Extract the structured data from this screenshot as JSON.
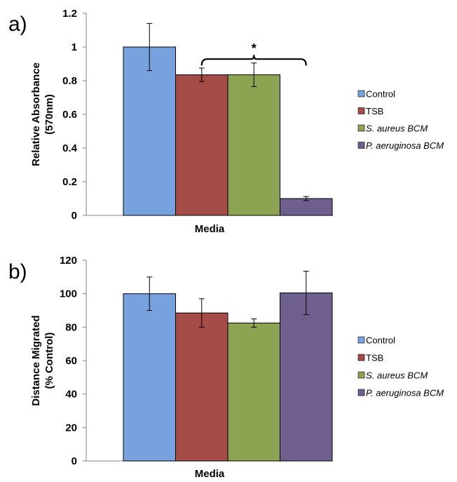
{
  "chart_data": [
    {
      "panel_label": "a)",
      "type": "bar",
      "categories": [
        "Control",
        "TSB",
        "S. aureus BCM",
        "P. aeruginosa BCM"
      ],
      "values": [
        1.0,
        0.835,
        0.835,
        0.1
      ],
      "errors": [
        0.14,
        0.04,
        0.07,
        0.012
      ],
      "colors": [
        "#77A2DD",
        "#A54B48",
        "#8CA452",
        "#6E5F8F"
      ],
      "italic": [
        false,
        false,
        true,
        true
      ],
      "xlabel": "Media",
      "ylabel_lines": [
        "Relative Absorbance",
        "(570nm)"
      ],
      "ylim": [
        0,
        1.2
      ],
      "yticks": [
        0,
        0.2,
        0.4,
        0.6,
        0.8,
        1,
        1.2
      ],
      "ytick_labels": [
        "0",
        "0.2",
        "0.4",
        "0.6",
        "0.8",
        "1",
        "1.2"
      ],
      "significance": {
        "label": "*",
        "from_category": 1,
        "to_category": 3,
        "y": 0.97
      },
      "legend_position": "right",
      "grid": false
    },
    {
      "panel_label": "b)",
      "type": "bar",
      "categories": [
        "Control",
        "TSB",
        "S. aureus BCM",
        "P. aeruginosa BCM"
      ],
      "values": [
        100,
        88.5,
        82.5,
        100.5
      ],
      "errors": [
        10,
        8.5,
        2.5,
        13
      ],
      "colors": [
        "#77A2DD",
        "#A54B48",
        "#8CA452",
        "#6E5F8F"
      ],
      "italic": [
        false,
        false,
        true,
        true
      ],
      "xlabel": "Media",
      "ylabel_lines": [
        "Distance Migrated",
        "(% Control)"
      ],
      "ylim": [
        0,
        120
      ],
      "yticks": [
        0,
        20,
        40,
        60,
        80,
        100,
        120
      ],
      "ytick_labels": [
        "0",
        "20",
        "40",
        "60",
        "80",
        "100",
        "120"
      ],
      "legend_position": "right",
      "grid": false
    }
  ]
}
